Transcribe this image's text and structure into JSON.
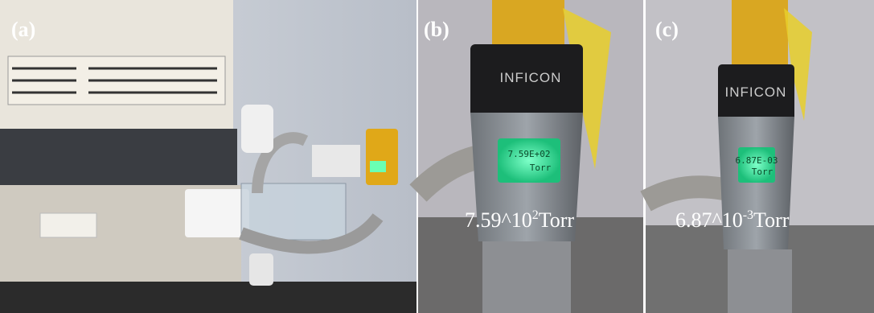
{
  "panels": [
    {
      "label": "(a)"
    },
    {
      "label": "(b)",
      "brand": "INFICON",
      "display": [
        "7.59E+02",
        "Torr"
      ],
      "reading": {
        "mantissa": "7.59^10",
        "exponent": "2",
        "unit": "Torr"
      }
    },
    {
      "label": "(c)",
      "brand": "INFICON",
      "display": [
        "6.87E-03",
        "Torr"
      ],
      "reading": {
        "mantissa": "6.87^10",
        "exponent": "-3",
        "unit": "Torr"
      }
    }
  ]
}
